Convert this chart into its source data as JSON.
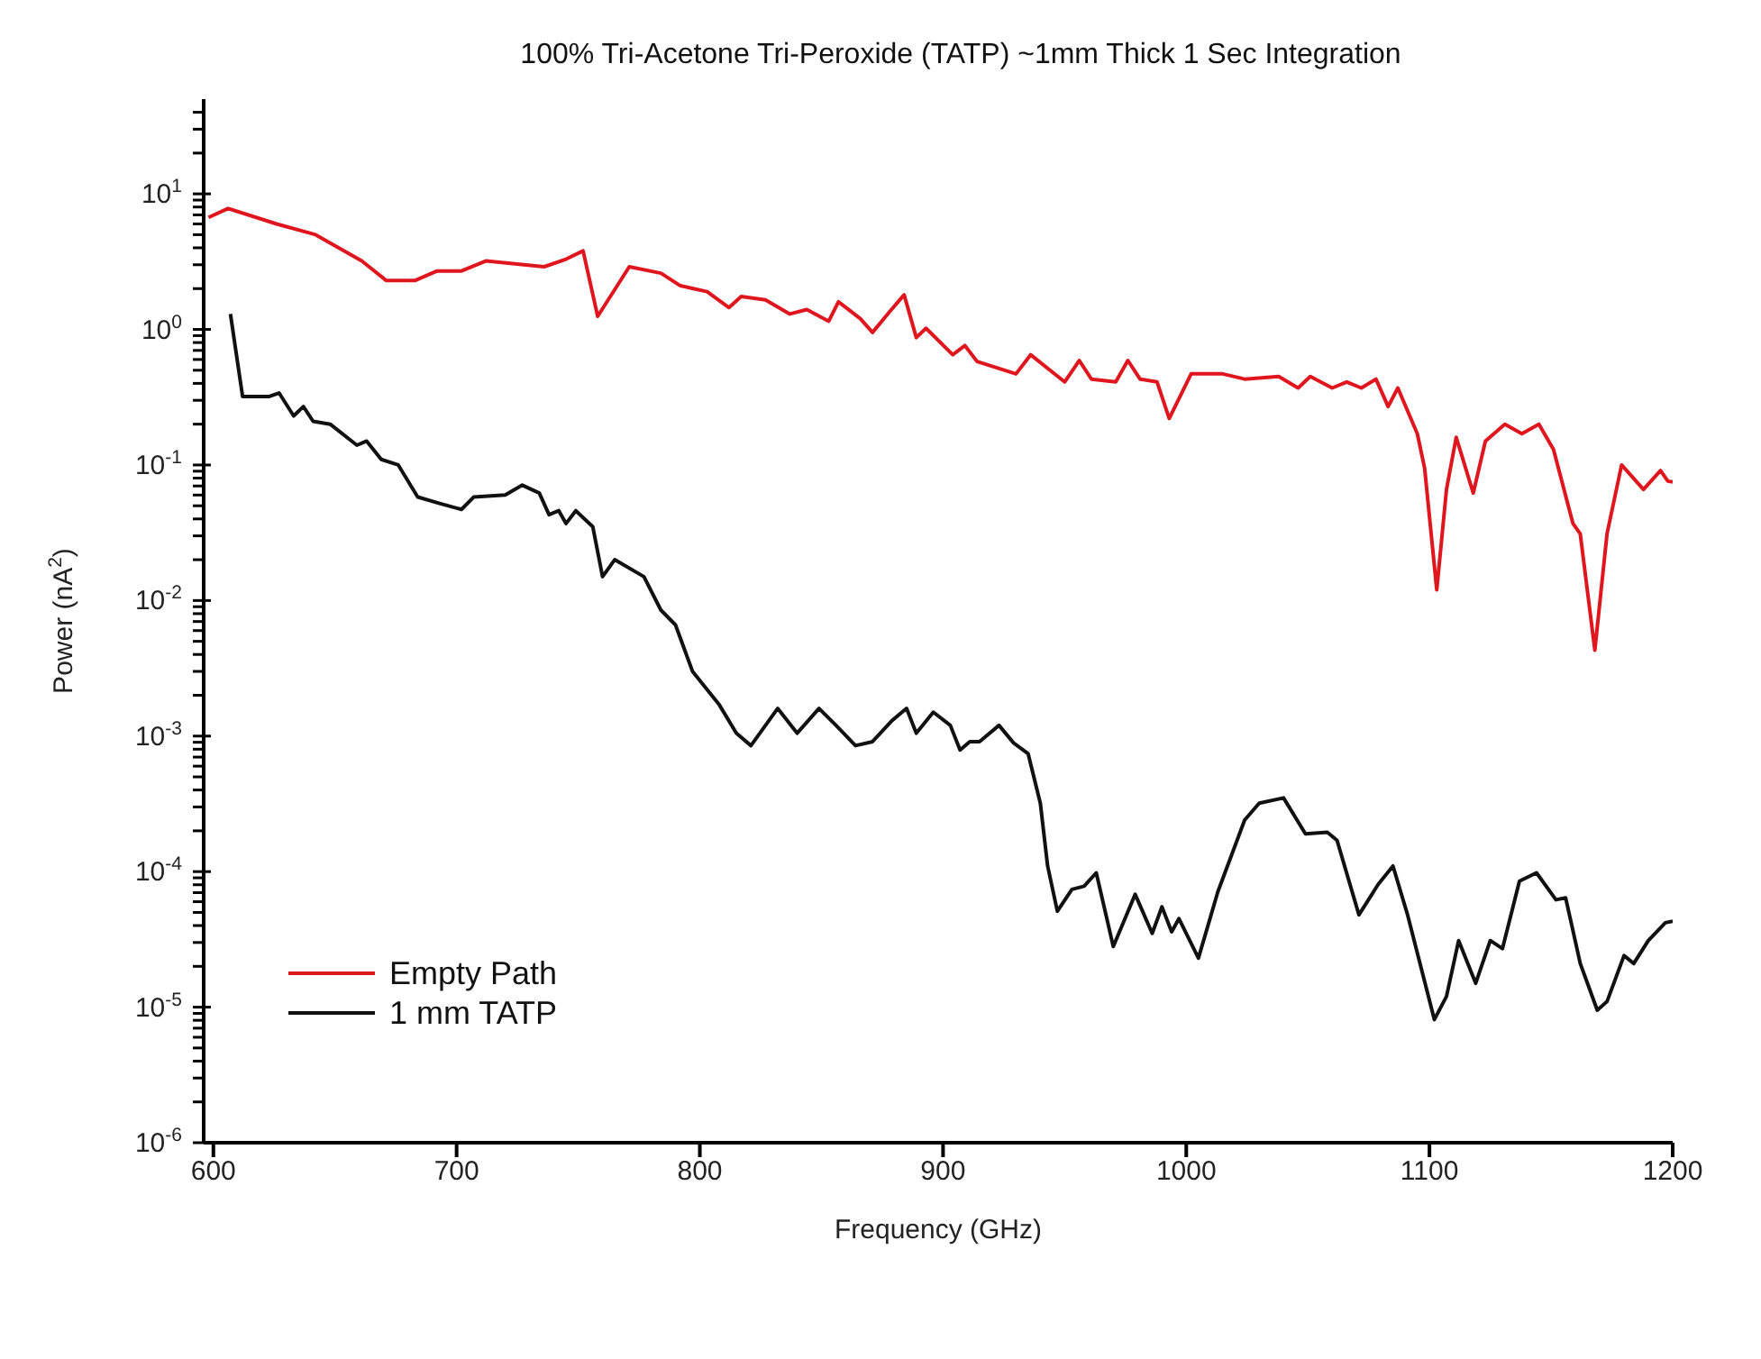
{
  "chart_data": {
    "type": "line",
    "title": "100% Tri-Acetone Tri-Peroxide (TATP) ~1mm Thick 1 Sec Integration",
    "xlabel": "Frequency (GHz)",
    "ylabel": "Power (nA$^{2}$)",
    "log": "y",
    "legend": "bottom left",
    "line_style": "solid",
    "marker": "none",
    "grid": false,
    "xlim": [
      596,
      1200
    ],
    "xticks": [
      600,
      700,
      800,
      900,
      1000,
      1100,
      1200
    ],
    "ylim": [
      1e-06,
      50
    ],
    "yticks": [
      {
        "value": 1e-06,
        "label": "10$^{-6}$"
      },
      {
        "value": 2e-06,
        "label": null
      },
      {
        "value": 3e-06,
        "label": null
      },
      {
        "value": 4e-06,
        "label": null
      },
      {
        "value": 5e-06,
        "label": null
      },
      {
        "value": 6e-06,
        "label": null
      },
      {
        "value": 7e-06,
        "label": null
      },
      {
        "value": 8e-06,
        "label": null
      },
      {
        "value": 9e-06,
        "label": null
      },
      {
        "value": 1e-05,
        "label": "10$^{-5}$"
      },
      {
        "value": 2e-05,
        "label": null
      },
      {
        "value": 3e-05,
        "label": null
      },
      {
        "value": 4e-05,
        "label": null
      },
      {
        "value": 5e-05,
        "label": null
      },
      {
        "value": 6e-05,
        "label": null
      },
      {
        "value": 7e-05,
        "label": null
      },
      {
        "value": 8e-05,
        "label": null
      },
      {
        "value": 9e-05,
        "label": null
      },
      {
        "value": 0.0001,
        "label": "10$^{-4}$"
      },
      {
        "value": 0.0002,
        "label": null
      },
      {
        "value": 0.0003,
        "label": null
      },
      {
        "value": 0.0004,
        "label": null
      },
      {
        "value": 0.0005,
        "label": null
      },
      {
        "value": 0.0006,
        "label": null
      },
      {
        "value": 0.0007,
        "label": null
      },
      {
        "value": 0.0008,
        "label": null
      },
      {
        "value": 0.0009,
        "label": null
      },
      {
        "value": 0.001,
        "label": "10$^{-3}$"
      },
      {
        "value": 0.002,
        "label": null
      },
      {
        "value": 0.003,
        "label": null
      },
      {
        "value": 0.004,
        "label": null
      },
      {
        "value": 0.005,
        "label": null
      },
      {
        "value": 0.006,
        "label": null
      },
      {
        "value": 0.007,
        "label": null
      },
      {
        "value": 0.008,
        "label": null
      },
      {
        "value": 0.009,
        "label": null
      },
      {
        "value": 0.01,
        "label": "10$^{-2}$"
      },
      {
        "value": 0.02,
        "label": null
      },
      {
        "value": 0.03,
        "label": null
      },
      {
        "value": 0.04,
        "label": null
      },
      {
        "value": 0.05,
        "label": null
      },
      {
        "value": 0.06,
        "label": null
      },
      {
        "value": 0.07,
        "label": null
      },
      {
        "value": 0.08,
        "label": null
      },
      {
        "value": 0.09,
        "label": null
      },
      {
        "value": 0.1,
        "label": "10$^{-1}$"
      },
      {
        "value": 0.2,
        "label": null
      },
      {
        "value": 0.3,
        "label": null
      },
      {
        "value": 0.4,
        "label": null
      },
      {
        "value": 0.5,
        "label": null
      },
      {
        "value": 0.6,
        "label": null
      },
      {
        "value": 0.7,
        "label": null
      },
      {
        "value": 0.8,
        "label": null
      },
      {
        "value": 0.9,
        "label": null
      },
      {
        "value": 1,
        "label": "10$^{0}$"
      },
      {
        "value": 2,
        "label": null
      },
      {
        "value": 3,
        "label": null
      },
      {
        "value": 4,
        "label": null
      },
      {
        "value": 5,
        "label": null
      },
      {
        "value": 6,
        "label": null
      },
      {
        "value": 7,
        "label": null
      },
      {
        "value": 8,
        "label": null
      },
      {
        "value": 9,
        "label": null
      },
      {
        "value": 10,
        "label": "10$^{1}$"
      },
      {
        "value": 20,
        "label": null
      },
      {
        "value": 30,
        "label": null
      },
      {
        "value": 40,
        "label": null
      }
    ],
    "series": [
      {
        "name": "Empty Path",
        "color": "#e0161e",
        "x": [
          598,
          606,
          626,
          642,
          661,
          671,
          683,
          692,
          702,
          712,
          736,
          745,
          752,
          758,
          771,
          784,
          792,
          803,
          812,
          817,
          827,
          837,
          844,
          853,
          857,
          866,
          871,
          878,
          884,
          889,
          893,
          904,
          909,
          914,
          930,
          936,
          950,
          956,
          961,
          971,
          976,
          981,
          988,
          993,
          1002,
          1015,
          1024,
          1038,
          1046,
          1051,
          1060,
          1066,
          1072,
          1078,
          1083,
          1087,
          1095,
          1098,
          1103,
          1107,
          1111,
          1118,
          1123,
          1131,
          1138,
          1145,
          1151,
          1159,
          1162,
          1168,
          1173,
          1179,
          1188,
          1195,
          1198,
          1200
        ],
        "values": [
          6.7,
          7.8,
          6.0,
          5.0,
          3.2,
          2.3,
          2.3,
          2.7,
          2.7,
          3.2,
          2.9,
          3.3,
          3.8,
          1.25,
          2.9,
          2.6,
          2.1,
          1.9,
          1.45,
          1.75,
          1.65,
          1.3,
          1.4,
          1.15,
          1.6,
          1.2,
          0.95,
          1.35,
          1.8,
          0.87,
          1.02,
          0.65,
          0.76,
          0.58,
          0.47,
          0.65,
          0.41,
          0.59,
          0.43,
          0.41,
          0.59,
          0.43,
          0.41,
          0.22,
          0.47,
          0.47,
          0.43,
          0.45,
          0.37,
          0.45,
          0.37,
          0.41,
          0.37,
          0.43,
          0.27,
          0.37,
          0.17,
          0.095,
          0.012,
          0.066,
          0.16,
          0.062,
          0.15,
          0.2,
          0.17,
          0.2,
          0.13,
          0.037,
          0.031,
          0.0043,
          0.031,
          0.1,
          0.066,
          0.091,
          0.076,
          0.075
        ]
      },
      {
        "name": "1 mm TATP",
        "color": "#111111",
        "x": [
          607,
          612,
          623,
          627,
          633,
          637,
          641,
          648,
          659,
          663,
          669,
          676,
          684,
          693,
          702,
          707,
          720,
          727,
          734,
          738,
          742,
          745,
          749,
          756,
          760,
          765,
          777,
          784,
          790,
          797,
          808,
          815,
          821,
          832,
          840,
          849,
          856,
          864,
          871,
          879,
          885,
          889,
          896,
          903,
          907,
          911,
          915,
          923,
          929,
          935,
          940,
          943,
          947,
          953,
          958,
          963,
          970,
          979,
          986,
          990,
          994,
          997,
          1005,
          1013,
          1024,
          1030,
          1040,
          1049,
          1058,
          1062,
          1071,
          1079,
          1085,
          1091,
          1102,
          1107,
          1112,
          1119,
          1125,
          1130,
          1137,
          1144,
          1152,
          1156,
          1162,
          1169,
          1173,
          1180,
          1184,
          1190,
          1197,
          1200
        ],
        "values": [
          1.3,
          0.32,
          0.32,
          0.34,
          0.23,
          0.27,
          0.21,
          0.2,
          0.14,
          0.15,
          0.11,
          0.1,
          0.058,
          0.052,
          0.047,
          0.058,
          0.06,
          0.071,
          0.062,
          0.043,
          0.046,
          0.037,
          0.046,
          0.035,
          0.015,
          0.02,
          0.015,
          0.0085,
          0.0066,
          0.003,
          0.0017,
          0.00105,
          0.00085,
          0.0016,
          0.00105,
          0.0016,
          0.0012,
          0.00085,
          0.00091,
          0.0013,
          0.0016,
          0.00105,
          0.0015,
          0.0012,
          0.00079,
          0.00091,
          0.00091,
          0.0012,
          0.00089,
          0.00074,
          0.00032,
          0.00011,
          5.1e-05,
          7.4e-05,
          7.8e-05,
          9.8e-05,
          2.8e-05,
          6.8e-05,
          3.5e-05,
          5.5e-05,
          3.6e-05,
          4.5e-05,
          2.3e-05,
          7.1e-05,
          0.00024,
          0.00032,
          0.00035,
          0.00019,
          0.000195,
          0.00017,
          4.8e-05,
          8.1e-05,
          0.00011,
          4.8e-05,
          8.1e-06,
          1.2e-05,
          3.1e-05,
          1.5e-05,
          3.1e-05,
          2.7e-05,
          8.5e-05,
          9.8e-05,
          6.2e-05,
          6.4e-05,
          2.1e-05,
          9.5e-06,
          1.1e-05,
          2.4e-05,
          2.1e-05,
          3.1e-05,
          4.2e-05,
          4.3e-05
        ]
      }
    ]
  }
}
